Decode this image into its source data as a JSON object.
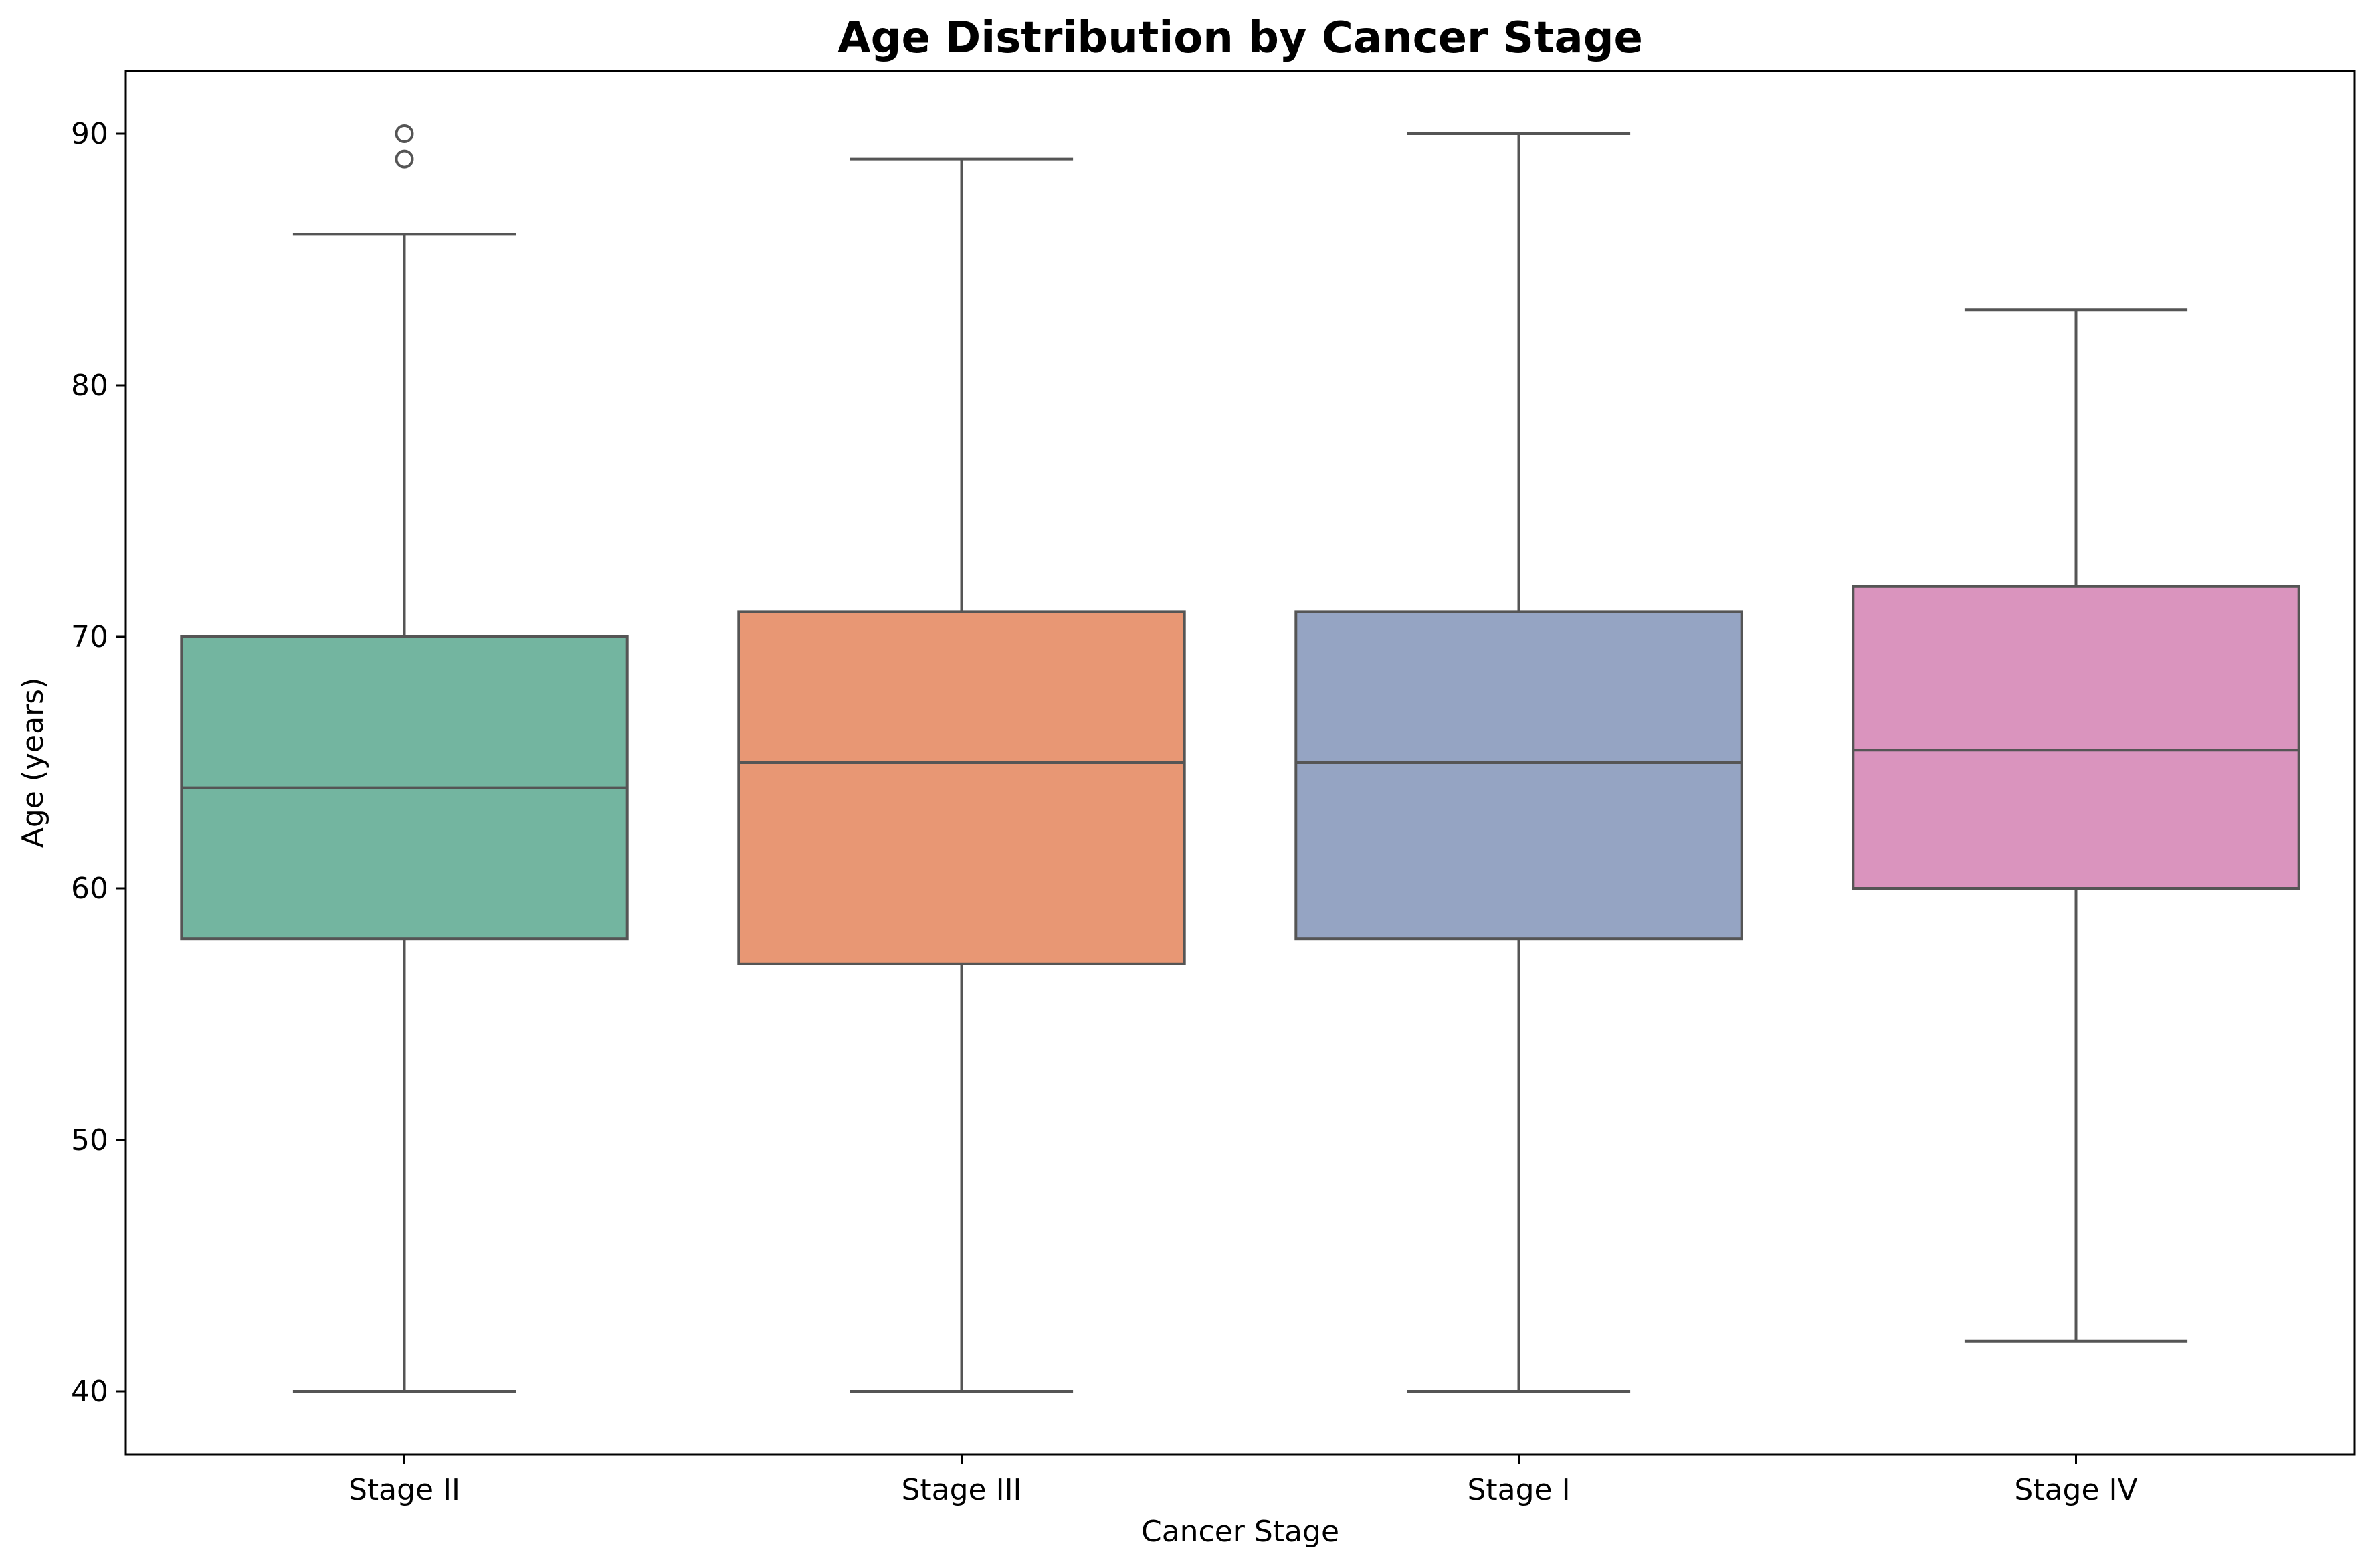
{
  "chart_data": {
    "type": "boxplot",
    "title": "Age Distribution by Cancer Stage",
    "xlabel": "Cancer Stage",
    "ylabel": "Age (years)",
    "ylim": [
      37.5,
      92.5
    ],
    "yticks": [
      40,
      50,
      60,
      70,
      80,
      90
    ],
    "grid": false,
    "categories": [
      "Stage II",
      "Stage III",
      "Stage I",
      "Stage IV"
    ],
    "boxes": [
      {
        "category": "Stage II",
        "whisker_low": 40,
        "q1": 58,
        "median": 64,
        "q3": 70,
        "whisker_high": 86,
        "outliers": [
          89,
          90
        ],
        "color": "#73b5a0"
      },
      {
        "category": "Stage III",
        "whisker_low": 40,
        "q1": 57,
        "median": 65,
        "q3": 71,
        "whisker_high": 89,
        "outliers": [],
        "color": "#e89774"
      },
      {
        "category": "Stage I",
        "whisker_low": 40,
        "q1": 58,
        "median": 65,
        "q3": 71,
        "whisker_high": 90,
        "outliers": [],
        "color": "#95a4c3"
      },
      {
        "category": "Stage IV",
        "whisker_low": 42,
        "q1": 60,
        "median": 65.5,
        "q3": 72,
        "whisker_high": 83,
        "outliers": [],
        "color": "#da94be"
      }
    ],
    "line_color": "#555555"
  }
}
